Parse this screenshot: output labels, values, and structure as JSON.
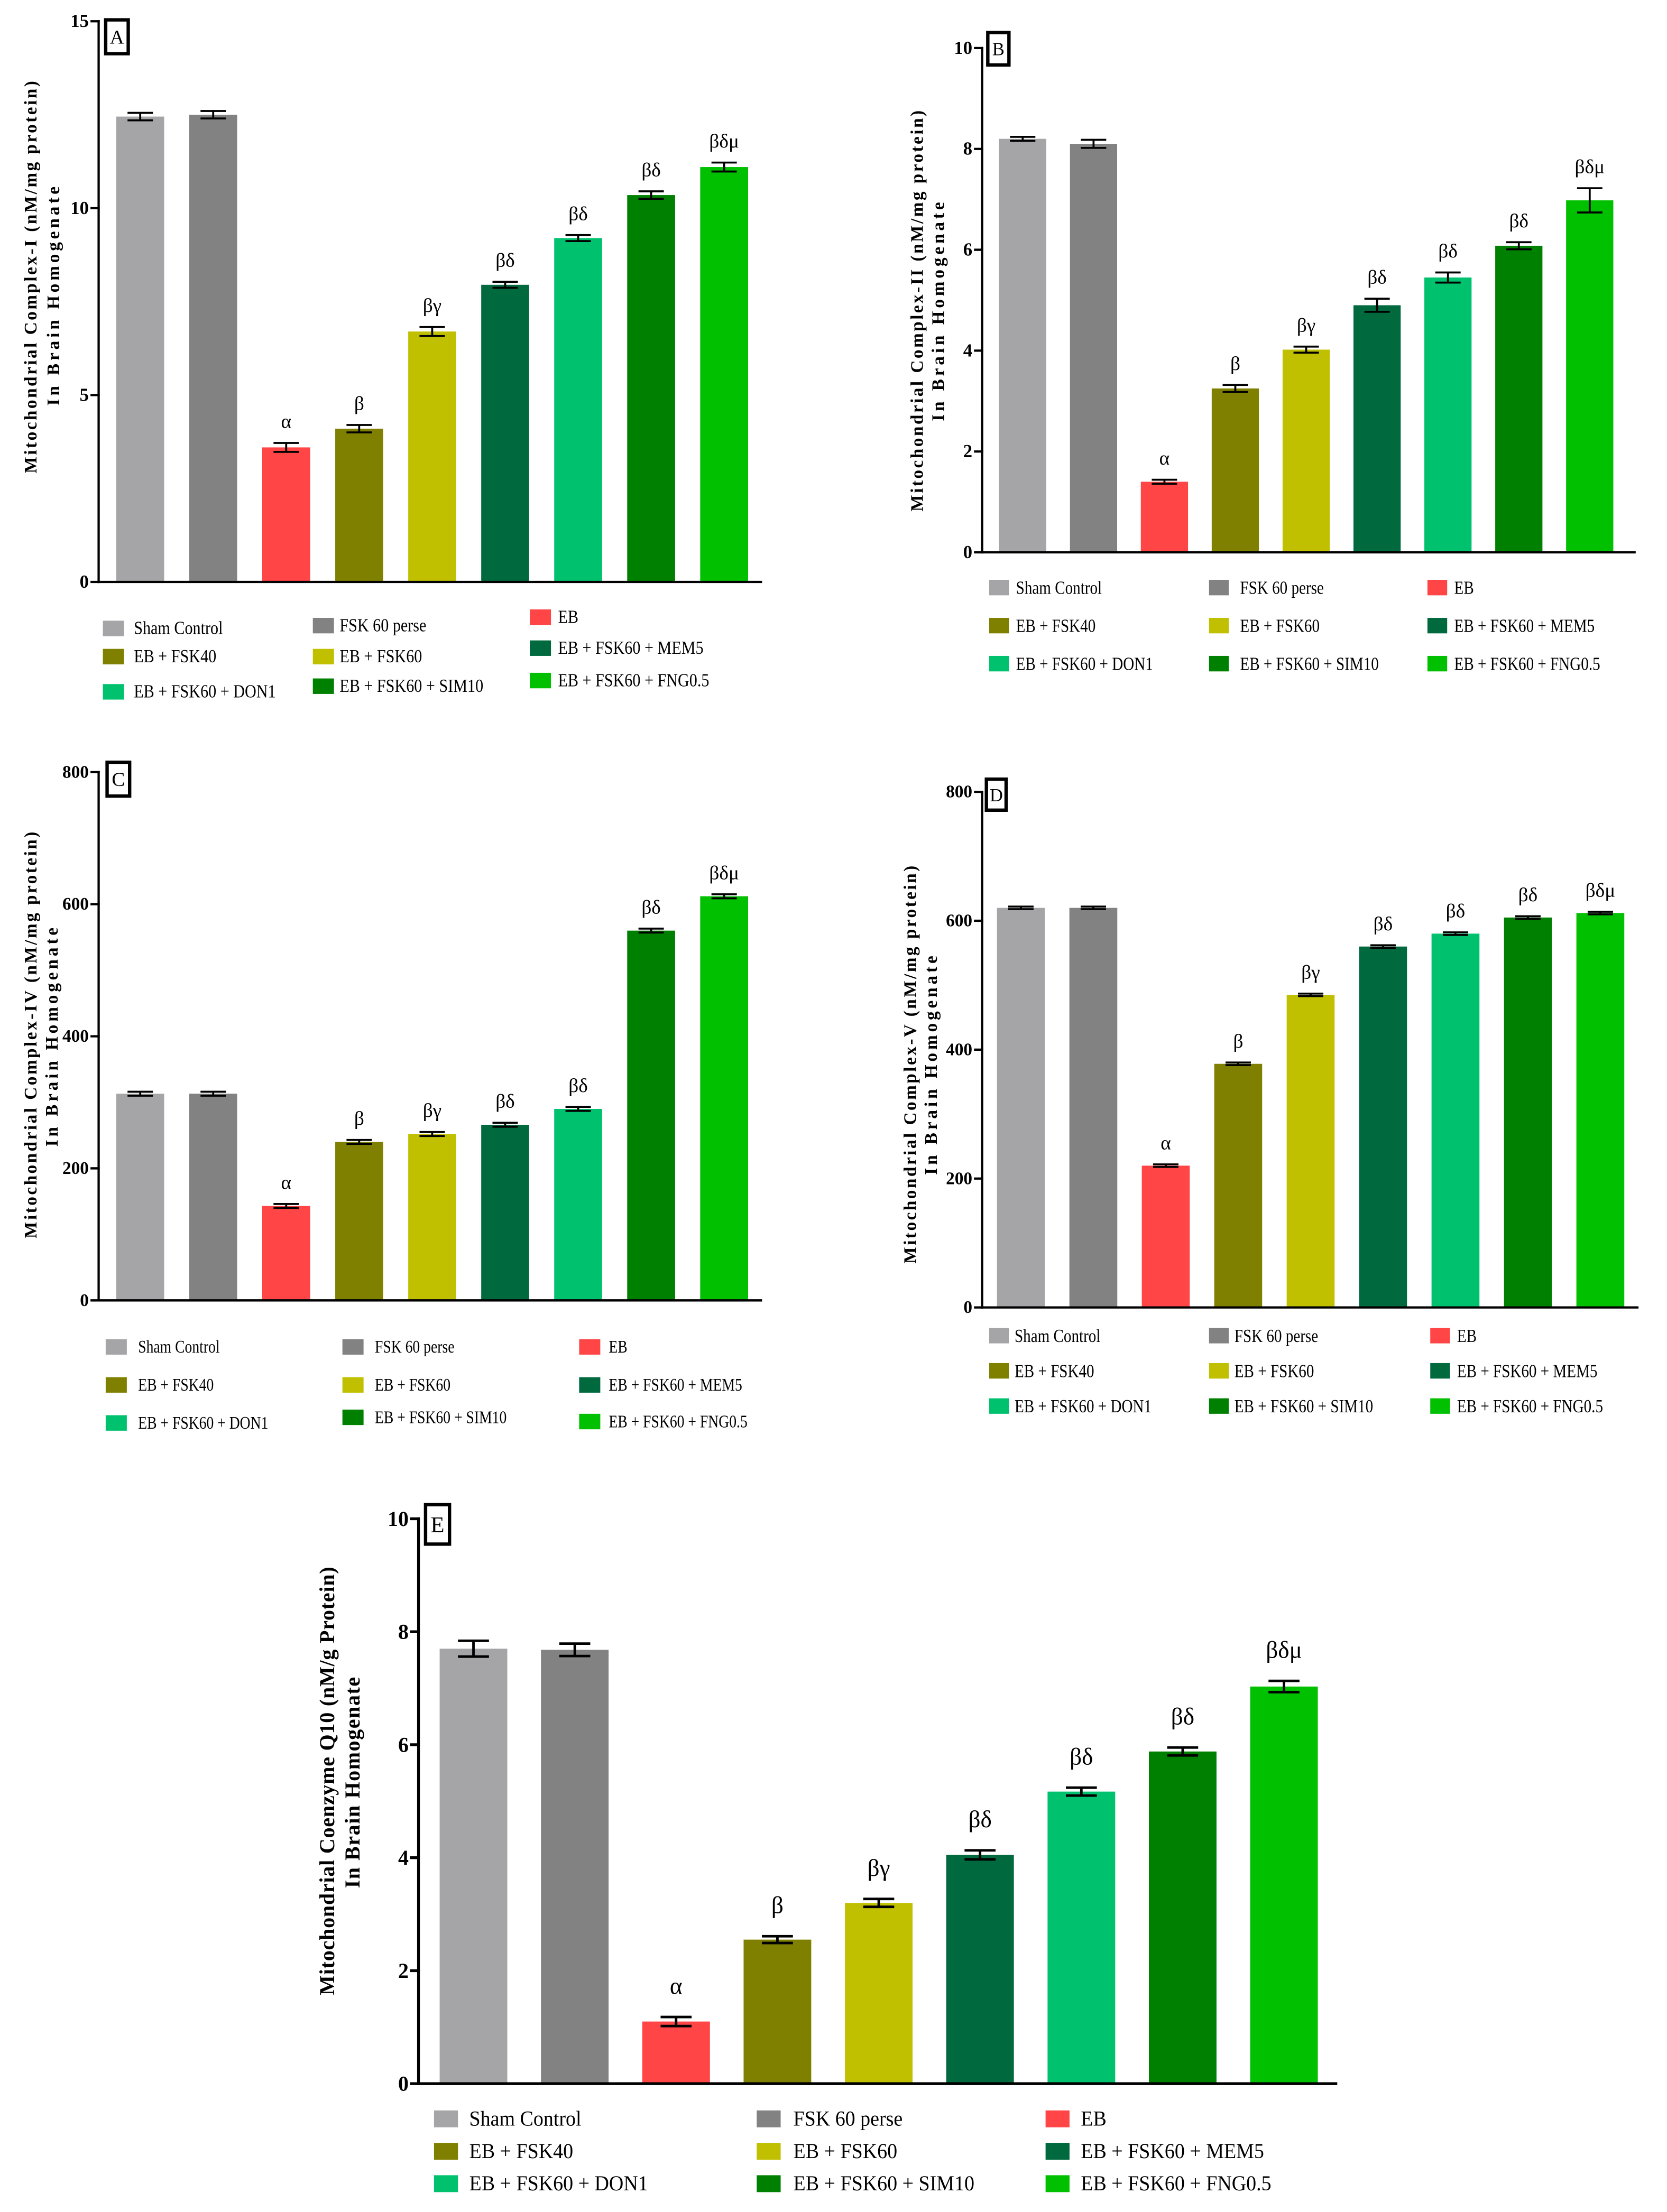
{
  "chart_data": [
    {
      "panel": "A",
      "type": "bar",
      "ylabel": [
        "Mitochondrial Complex-I (nM/mg protein)",
        "In Brain Homogenate"
      ],
      "ylim": [
        0,
        15
      ],
      "yticks": [
        0,
        5,
        10,
        15
      ],
      "categories": [
        "Sham Control",
        "FSK 60 perse",
        "EB",
        "EB + FSK40",
        "EB + FSK60",
        "EB + FSK60 + MEM5",
        "EB + FSK60 + DON1",
        "EB + FSK60 + SIM10",
        "EB + FSK60 + FNG0.5"
      ],
      "values": [
        12.45,
        12.5,
        3.6,
        4.1,
        6.7,
        7.95,
        9.2,
        10.35,
        11.1
      ],
      "errors": [
        0.1,
        0.1,
        0.12,
        0.1,
        0.12,
        0.08,
        0.08,
        0.1,
        0.12
      ],
      "annotations": [
        null,
        null,
        "α",
        "β",
        "βγ",
        "βδ",
        "βδ",
        "βδ",
        "βδμ"
      ],
      "colors": [
        "#a5a5a7",
        "#828282",
        "#ff4545",
        "#808000",
        "#c0c000",
        "#00693e",
        "#00c26e",
        "#008000",
        "#00c000"
      ],
      "legend": "bottom"
    },
    {
      "panel": "B",
      "type": "bar",
      "ylabel": [
        "Mitochondrial Complex-II (nM/mg protein)",
        "In Brain Homogenate"
      ],
      "ylim": [
        0,
        10
      ],
      "yticks": [
        0,
        2,
        4,
        6,
        8,
        10
      ],
      "categories": [
        "Sham Control",
        "FSK 60 perse",
        "EB",
        "EB + FSK40",
        "EB + FSK60",
        "EB + FSK60 + MEM5",
        "EB + FSK60 + DON1",
        "EB + FSK60 + SIM10",
        "EB + FSK60 + FNG0.5"
      ],
      "values": [
        8.2,
        8.1,
        1.4,
        3.25,
        4.02,
        4.9,
        5.45,
        6.08,
        6.98
      ],
      "errors": [
        0.04,
        0.08,
        0.04,
        0.07,
        0.06,
        0.13,
        0.1,
        0.07,
        0.24
      ],
      "annotations": [
        null,
        null,
        "α",
        "β",
        "βγ",
        "βδ",
        "βδ",
        "βδ",
        "βδμ"
      ],
      "colors": [
        "#a5a5a7",
        "#828282",
        "#ff4545",
        "#808000",
        "#c0c000",
        "#00693e",
        "#00c26e",
        "#008000",
        "#00c000"
      ],
      "legend": "bottom"
    },
    {
      "panel": "C",
      "type": "bar",
      "ylabel": [
        "Mitochondrial Complex-IV (nM/mg protein)",
        "In Brain Homogenate"
      ],
      "ylim": [
        0,
        800
      ],
      "yticks": [
        0,
        200,
        400,
        600,
        800
      ],
      "categories": [
        "Sham Control",
        "FSK 60 perse",
        "EB",
        "EB + FSK40",
        "EB + FSK60",
        "EB + FSK60 + MEM5",
        "EB + FSK60 + DON1",
        "EB + FSK60 + SIM10",
        "EB + FSK60 + FNG0.5"
      ],
      "values": [
        313,
        313,
        143,
        240,
        252,
        266,
        290,
        560,
        612
      ],
      "errors": [
        3,
        3,
        3,
        3,
        3,
        3,
        3,
        3,
        3
      ],
      "annotations": [
        null,
        null,
        "α",
        "β",
        "βγ",
        "βδ",
        "βδ",
        "βδ",
        "βδμ"
      ],
      "colors": [
        "#a5a5a7",
        "#828282",
        "#ff4545",
        "#808000",
        "#c0c000",
        "#00693e",
        "#00c26e",
        "#008000",
        "#00c000"
      ],
      "legend": "bottom"
    },
    {
      "panel": "D",
      "type": "bar",
      "ylabel": [
        "Mitochondrial Complex-V (nM/mg protein)",
        "In Brain Homogenate"
      ],
      "ylim": [
        0,
        800
      ],
      "yticks": [
        0,
        200,
        400,
        600,
        800
      ],
      "categories": [
        "Sham Control",
        "FSK 60 perse",
        "EB",
        "EB + FSK40",
        "EB + FSK60",
        "EB + FSK60 + MEM5",
        "EB + FSK60 + DON1",
        "EB + FSK60 + SIM10",
        "EB + FSK60 + FNG0.5"
      ],
      "values": [
        620,
        620,
        220,
        378,
        485,
        560,
        580,
        605,
        612
      ],
      "errors": [
        2,
        2,
        2,
        2,
        2,
        2,
        2,
        2,
        2
      ],
      "annotations": [
        null,
        null,
        "α",
        "β",
        "βγ",
        "βδ",
        "βδ",
        "βδ",
        "βδμ"
      ],
      "colors": [
        "#a5a5a7",
        "#828282",
        "#ff4545",
        "#808000",
        "#c0c000",
        "#00693e",
        "#00c26e",
        "#008000",
        "#00c000"
      ],
      "legend": "bottom"
    },
    {
      "panel": "E",
      "type": "bar",
      "ylabel": [
        "Mitochondrial Coenzyme Q10 (nM/g Protein)",
        "In Brain Homogenate"
      ],
      "ylim": [
        0,
        10
      ],
      "yticks": [
        0,
        2,
        4,
        6,
        8,
        10
      ],
      "categories": [
        "Sham Control",
        "FSK 60 perse",
        "EB",
        "EB + FSK40",
        "EB + FSK60",
        "EB + FSK60 + MEM5",
        "EB + FSK60 + DON1",
        "EB + FSK60 + SIM10",
        "EB + FSK60 + FNG0.5"
      ],
      "values": [
        7.7,
        7.68,
        1.1,
        2.55,
        3.2,
        4.05,
        5.17,
        5.88,
        7.03
      ],
      "errors": [
        0.14,
        0.11,
        0.08,
        0.06,
        0.07,
        0.08,
        0.07,
        0.07,
        0.1
      ],
      "annotations": [
        null,
        null,
        "α",
        "β",
        "βγ",
        "βδ",
        "βδ",
        "βδ",
        "βδμ"
      ],
      "colors": [
        "#a5a5a7",
        "#828282",
        "#ff4545",
        "#808000",
        "#c0c000",
        "#00693e",
        "#00c26e",
        "#008000",
        "#00c000"
      ],
      "legend": "bottom"
    }
  ]
}
